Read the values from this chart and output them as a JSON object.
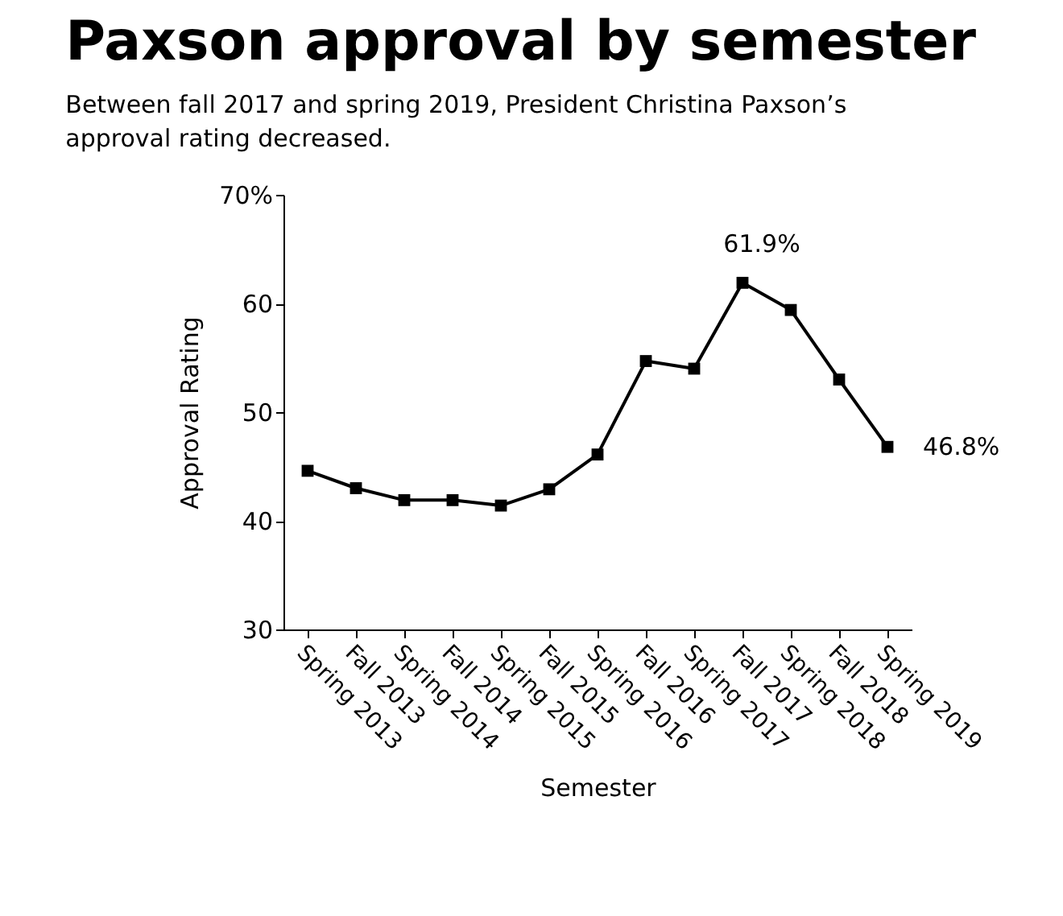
{
  "chart_data": {
    "type": "line",
    "title": "Paxson approval by semester",
    "subtitle": "Between fall 2017 and spring 2019, President Christina Paxson’s approval rating decreased.",
    "xlabel": "Semester",
    "ylabel": "Approval Rating",
    "categories": [
      "Spring 2013",
      "Fall 2013",
      "Spring 2014",
      "Fall 2014",
      "Spring 2015",
      "Fall 2015",
      "Spring 2016",
      "Fall 2016",
      "Spring 2017",
      "Fall 2017",
      "Spring 2018",
      "Fall 2018",
      "Spring 2019"
    ],
    "series": [
      {
        "color": "#000000",
        "values": [
          44.6,
          43.0,
          41.9,
          41.9,
          41.4,
          42.9,
          46.1,
          54.7,
          54.0,
          61.9,
          59.4,
          53.0,
          46.8
        ]
      }
    ],
    "ylim": [
      30,
      70
    ],
    "yticks": [
      30,
      40,
      50,
      60,
      {
        "value": 70,
        "label": "70%"
      }
    ],
    "annotations": [
      {
        "text": "61.9%",
        "x": "Fall 2017",
        "y": 61.9
      },
      {
        "text": "46.8%",
        "x": "Spring 2019",
        "y": 46.8
      }
    ],
    "grid": false,
    "marker": "square",
    "line_style": "solid"
  }
}
